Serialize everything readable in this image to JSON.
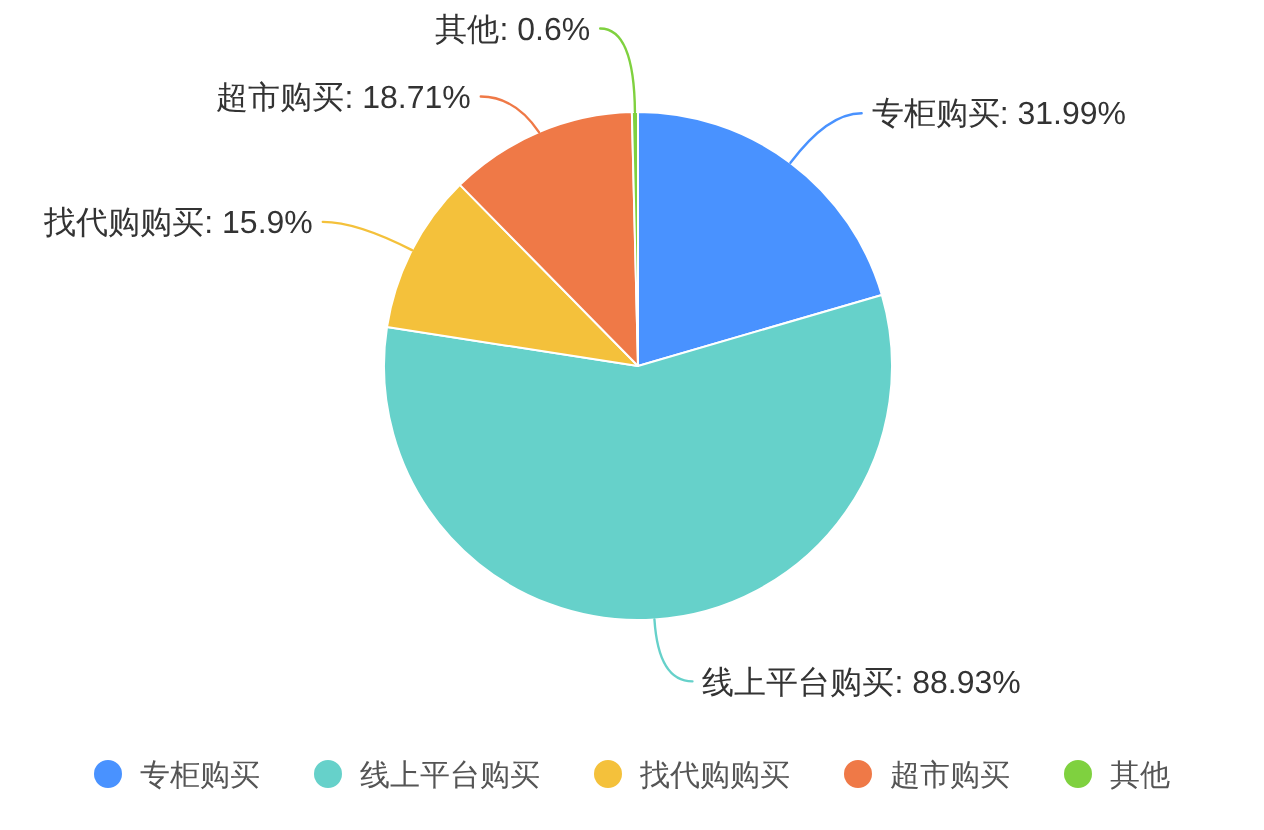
{
  "chart_data": {
    "type": "pie",
    "categories": [
      "专柜购买",
      "线上平台购买",
      "找代购购买",
      "超市购买",
      "其他"
    ],
    "values": [
      31.99,
      88.93,
      15.9,
      18.71,
      0.6
    ],
    "colors": [
      "#4992ff",
      "#66d1ca",
      "#f4c13b",
      "#ef7947",
      "#7fd13f"
    ],
    "value_labels": [
      "专柜购买: 31.99%",
      "线上平台购买: 88.93%",
      "找代购购买: 15.9%",
      "超市购买: 18.71%",
      "其他: 0.6%"
    ],
    "legend": "bottom"
  }
}
